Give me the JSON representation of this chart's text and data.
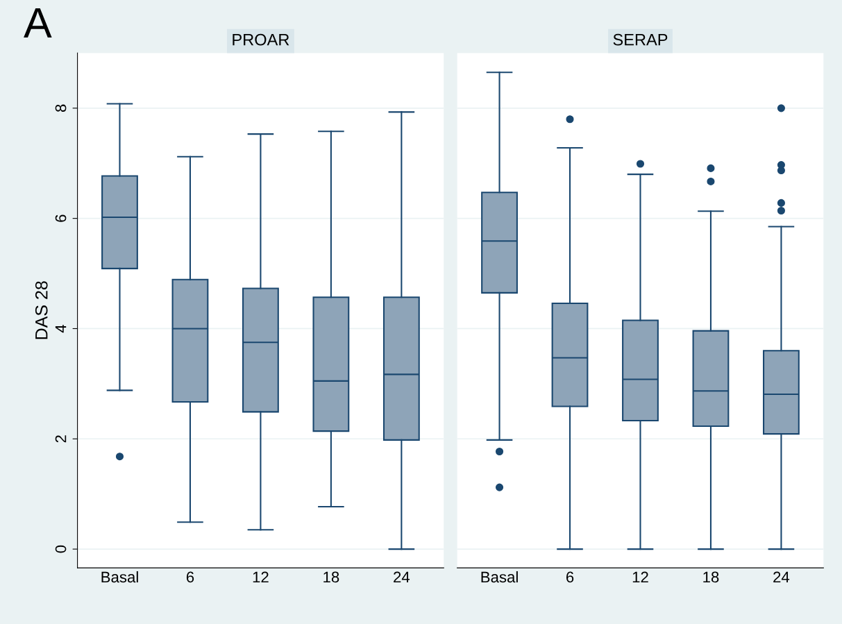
{
  "chart_data": [
    {
      "type": "box",
      "title": "PROAR",
      "ylabel": "DAS 28",
      "annotations": [
        "A"
      ],
      "categories": [
        "Basal",
        "6",
        "12",
        "18",
        "24"
      ],
      "color": "#8ea4b8",
      "ylim": [
        -0.34,
        9.0
      ],
      "yticks": [
        0,
        2,
        4,
        6,
        8
      ],
      "grid": "y",
      "boxes": [
        {
          "low": 2.88,
          "q1": 5.09,
          "median": 6.02,
          "q3": 6.77,
          "high": 8.08,
          "outliers": [
            1.68
          ]
        },
        {
          "low": 0.49,
          "q1": 2.67,
          "median": 4.0,
          "q3": 4.89,
          "high": 7.12
        },
        {
          "low": 0.35,
          "q1": 2.49,
          "median": 3.75,
          "q3": 4.73,
          "high": 7.53
        },
        {
          "low": 0.77,
          "q1": 2.14,
          "median": 3.05,
          "q3": 4.57,
          "high": 7.58
        },
        {
          "low": 0.0,
          "q1": 1.98,
          "median": 3.17,
          "q3": 4.57,
          "high": 7.93
        }
      ]
    },
    {
      "type": "box",
      "title": "SERAP",
      "categories": [
        "Basal",
        "6",
        "12",
        "18",
        "24"
      ],
      "color": "#8ea4b8",
      "ylim": [
        -0.34,
        9.0
      ],
      "yticks": [
        0,
        2,
        4,
        6,
        8
      ],
      "grid": "y",
      "tick_labels": "x",
      "boxes": [
        {
          "low": 1.98,
          "q1": 4.65,
          "median": 5.59,
          "q3": 6.47,
          "high": 8.65,
          "outliers": [
            1.77,
            1.12
          ]
        },
        {
          "low": 0.0,
          "q1": 2.59,
          "median": 3.47,
          "q3": 4.46,
          "high": 7.28,
          "outliers": [
            7.8
          ]
        },
        {
          "low": 0.0,
          "q1": 2.33,
          "median": 3.08,
          "q3": 4.15,
          "high": 6.8,
          "outliers": [
            6.99
          ]
        },
        {
          "low": 0.0,
          "q1": 2.23,
          "median": 2.87,
          "q3": 3.96,
          "high": 6.13,
          "outliers": [
            6.91,
            6.67
          ]
        },
        {
          "low": 0.0,
          "q1": 2.09,
          "median": 2.81,
          "q3": 3.6,
          "high": 5.85,
          "outliers": [
            8.0,
            6.97,
            6.87,
            6.28,
            6.14
          ]
        }
      ]
    }
  ]
}
